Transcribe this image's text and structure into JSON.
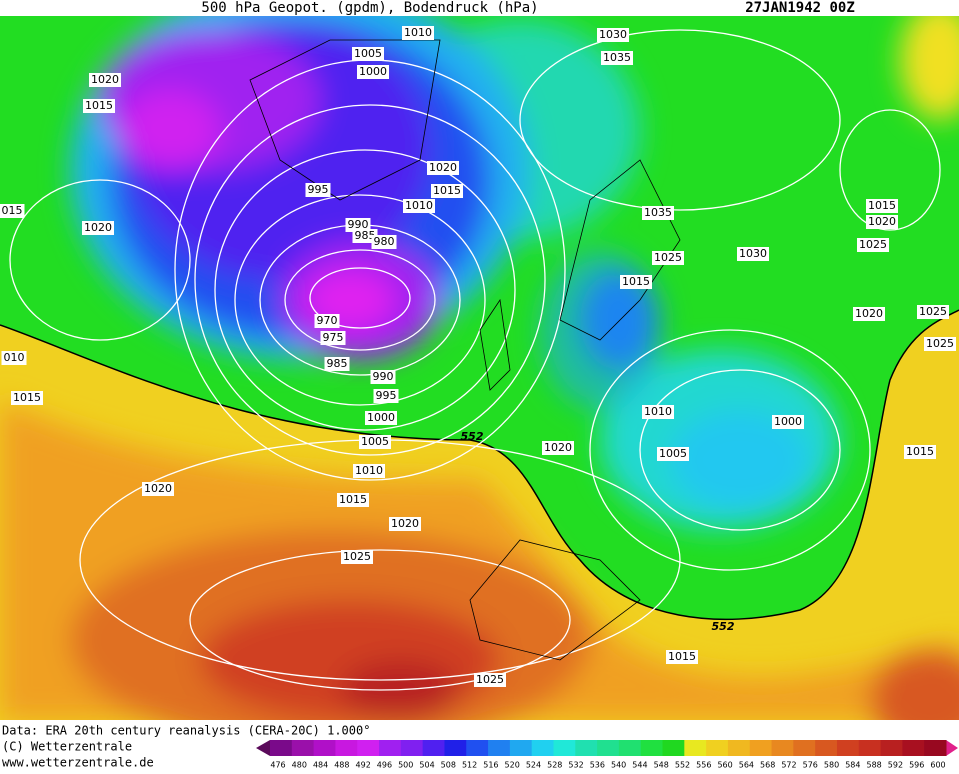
{
  "header": {
    "title": "500 hPa Geopot. (gpdm), Bodendruck (hPa)",
    "date": "27JAN1942 00Z"
  },
  "isobar_labels": [
    "1010",
    "1005",
    "1000",
    "1020",
    "1015",
    "1030",
    "1035",
    "1020",
    "1015",
    "995",
    "1010",
    "1035",
    "015",
    "1020",
    "990",
    "985",
    "980",
    "1025",
    "1030",
    "1015",
    "1015",
    "1020",
    "1025",
    "970",
    "975",
    "1020",
    "1025",
    "1025",
    "010",
    "985",
    "990",
    "1015",
    "995",
    "1000",
    "1010",
    "1000",
    "552",
    "1005",
    "1020",
    "1005",
    "1015",
    "1010",
    "1020",
    "1015",
    "1020",
    "1025",
    "552",
    "1015",
    "1025"
  ],
  "footer": {
    "source": "Data: ERA 20th century reanalysis (CERA-20C) 1.000°",
    "copyright": "(C) Wetterzentrale",
    "url": "www.wetterzentrale.de"
  },
  "colorbar": {
    "labels": [
      476,
      480,
      484,
      488,
      492,
      496,
      500,
      504,
      508,
      512,
      516,
      520,
      524,
      528,
      532,
      536,
      540,
      544,
      548,
      552,
      556,
      560,
      564,
      568,
      572,
      576,
      580,
      584,
      588,
      592,
      596,
      600
    ],
    "colors": [
      "#5a0a5a",
      "#7a0a8a",
      "#9a10aa",
      "#b010c8",
      "#c818e0",
      "#d020f0",
      "#a020f0",
      "#8020f0",
      "#5020f0",
      "#2020e8",
      "#2050f0",
      "#2080f0",
      "#20a8f0",
      "#20d0f0",
      "#20e8d8",
      "#20e0b0",
      "#20e090",
      "#20e070",
      "#20e040",
      "#20d820",
      "#e8e820",
      "#f0d020",
      "#f0b820",
      "#f0a020",
      "#e88820",
      "#e07020",
      "#d85820",
      "#d04020",
      "#c83020",
      "#b82020",
      "#a81020",
      "#980820",
      "#e0208a"
    ]
  }
}
